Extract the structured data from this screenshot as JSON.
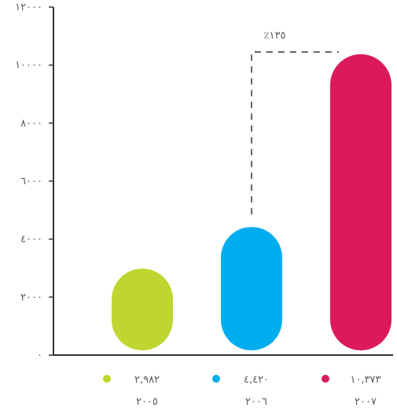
{
  "chart_data": {
    "type": "bar",
    "categories": [
      "٢٠٠٥",
      "٢٠٠٦",
      "٢٠٠٧"
    ],
    "values": [
      2982,
      4420,
      10373
    ],
    "value_labels": [
      "٢,٩٨٢",
      "٤,٤٢٠",
      "١٠,٣٧٣"
    ],
    "colors": [
      "#bfd630",
      "#00aeef",
      "#dc1a5a"
    ],
    "ylim": [
      0,
      12000
    ],
    "yticks": [
      0,
      2000,
      4000,
      6000,
      8000,
      10000,
      12000
    ],
    "ytick_labels": [
      "٠",
      "٢٠٠٠",
      "٤٠٠٠",
      "٦٠٠٠",
      "٨٠٠٠",
      "١٠٠٠٠",
      "١٢٠٠٠"
    ],
    "annotation": {
      "text": "٪١٣٥",
      "from_category": 1,
      "to_category": 2
    },
    "grid": false,
    "legend_placement": "bottom"
  }
}
